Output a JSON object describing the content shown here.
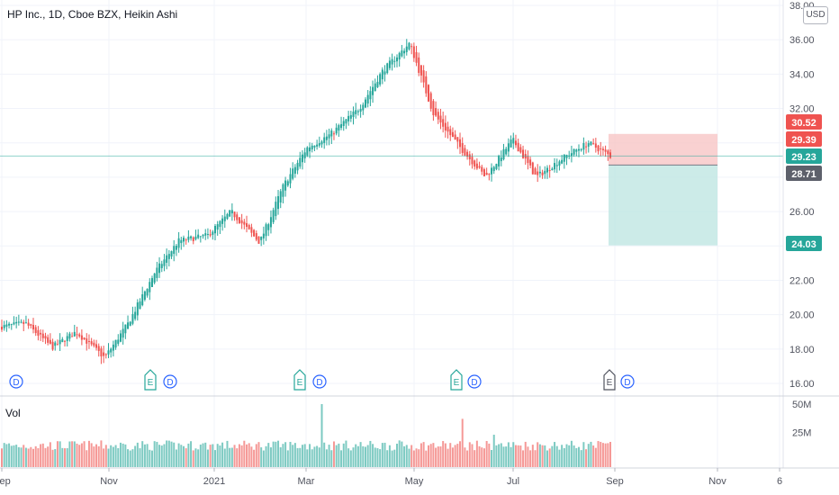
{
  "header": {
    "title": "HP Inc., 1D, Cboe BZX, Heikin Ashi",
    "currency": "USD",
    "volume_label": "Vol"
  },
  "colors": {
    "up": "#26a69a",
    "down": "#ef5350",
    "stop_zone": "#f8c6c6",
    "target_zone": "#bfe6e2",
    "last_price_line": "#26a69a",
    "entry_line": "#787b86"
  },
  "price_axis": {
    "ticks": [
      "38.00",
      "36.00",
      "34.00",
      "32.00",
      "30.00",
      "28.00",
      "26.00",
      "24.00",
      "22.00",
      "20.00",
      "18.00",
      "16.00"
    ],
    "tags": [
      {
        "value": "30.52",
        "price": 30.52,
        "color": "#ef5350"
      },
      {
        "value": "29.39",
        "price": 29.39,
        "color": "#ef5350"
      },
      {
        "value": "29.23",
        "price": 29.23,
        "color": "#26a69a"
      },
      {
        "value": "28.71",
        "price": 28.71,
        "color": "#5d606b"
      },
      {
        "value": "24.03",
        "price": 24.03,
        "color": "#26a69a"
      }
    ]
  },
  "volume_axis": {
    "ticks": [
      "50M",
      "25M"
    ]
  },
  "time_axis": {
    "labels": [
      "Sep",
      "Nov",
      "2021",
      "Mar",
      "May",
      "Jul",
      "Sep",
      "Nov",
      "6"
    ]
  },
  "events": [
    {
      "date": "2020-09",
      "type": "D"
    },
    {
      "date": "2020-11",
      "type": "E"
    },
    {
      "date": "2020-12",
      "type": "D"
    },
    {
      "date": "2021-02",
      "type": "E"
    },
    {
      "date": "2021-03",
      "type": "D"
    },
    {
      "date": "2021-05",
      "type": "E"
    },
    {
      "date": "2021-06",
      "type": "D"
    },
    {
      "date": "2021-08",
      "type": "E"
    },
    {
      "date": "2021-09",
      "type": "D"
    }
  ],
  "position": {
    "entry": 28.71,
    "stop": 30.52,
    "target": 24.03
  },
  "chart_data": {
    "type": "candlestick",
    "title": "HP Inc., 1D, Cboe BZX, Heikin Ashi",
    "xlabel": "",
    "ylabel": "",
    "ylim": [
      16,
      38
    ],
    "grid": true,
    "series": [
      {
        "name": "Price",
        "approx_close_path": [
          [
            "2020-09-01",
            19.3
          ],
          [
            "2020-09-15",
            19.5
          ],
          [
            "2020-10-01",
            18.1
          ],
          [
            "2020-10-15",
            19.0
          ],
          [
            "2020-11-01",
            17.5
          ],
          [
            "2020-11-15",
            19.5
          ],
          [
            "2020-12-01",
            22.5
          ],
          [
            "2020-12-15",
            24.3
          ],
          [
            "2021-01-01",
            24.6
          ],
          [
            "2021-01-15",
            26.0
          ],
          [
            "2021-02-01",
            24.2
          ],
          [
            "2021-02-15",
            27.5
          ],
          [
            "2021-03-01",
            29.7
          ],
          [
            "2021-03-15",
            30.5
          ],
          [
            "2021-04-01",
            32.0
          ],
          [
            "2021-04-15",
            34.2
          ],
          [
            "2021-05-01",
            35.8
          ],
          [
            "2021-05-15",
            31.7
          ],
          [
            "2021-06-01",
            29.6
          ],
          [
            "2021-06-15",
            28.0
          ],
          [
            "2021-07-01",
            30.2
          ],
          [
            "2021-07-15",
            28.0
          ],
          [
            "2021-08-01",
            29.2
          ],
          [
            "2021-08-15",
            30.0
          ],
          [
            "2021-08-28",
            29.23
          ]
        ]
      },
      {
        "name": "Volume",
        "approx_peaks": [
          [
            "2021-03-10",
            50000000
          ],
          [
            "2021-06-01",
            37000000
          ],
          [
            "2021-06-20",
            23000000
          ]
        ]
      }
    ]
  }
}
